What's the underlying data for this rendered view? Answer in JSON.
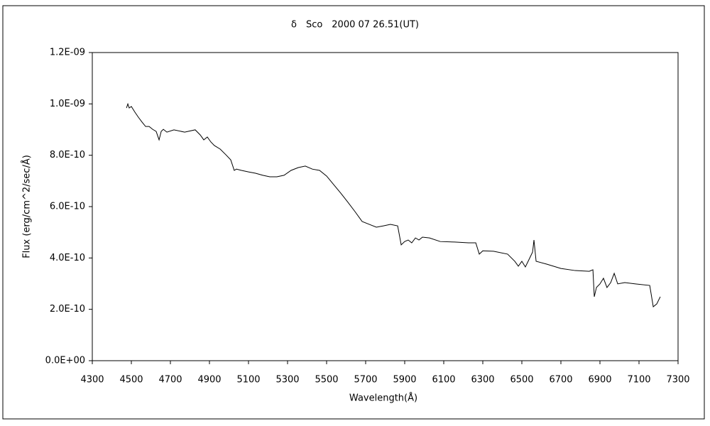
{
  "chart_data": {
    "type": "line",
    "title": "δ　Sco　2000 07 26.51(UT)",
    "x_label": "Wavelength(Å)",
    "y_label": "Flux (erg/cm^2/sec/Å)",
    "color": "#000000",
    "x": [
      4475,
      4482,
      4489,
      4500,
      4518,
      4536,
      4555,
      4573,
      4591,
      4609,
      4627,
      4642,
      4653,
      4664,
      4682,
      4718,
      4773,
      4827,
      4853,
      4871,
      4889,
      4907,
      4925,
      4955,
      4984,
      5009,
      5027,
      5038,
      5064,
      5100,
      5136,
      5173,
      5209,
      5245,
      5282,
      5318,
      5355,
      5391,
      5427,
      5464,
      5500,
      5536,
      5573,
      5609,
      5645,
      5682,
      5718,
      5755,
      5791,
      5827,
      5864,
      5882,
      5900,
      5918,
      5936,
      5955,
      5973,
      5991,
      6027,
      6082,
      6155,
      6227,
      6264,
      6282,
      6300,
      6355,
      6427,
      6464,
      6482,
      6500,
      6518,
      6536,
      6555,
      6562,
      6573,
      6627,
      6700,
      6773,
      6845,
      6864,
      6871,
      6882,
      6900,
      6918,
      6936,
      6955,
      6973,
      6991,
      7027,
      7082,
      7155,
      7173,
      7191,
      7209
    ],
    "values": [
      9.84e-10,
      1e-09,
      9.84e-10,
      9.9e-10,
      9.68e-10,
      9.48e-10,
      9.29e-10,
      9.12e-10,
      9.12e-10,
      9.01e-10,
      8.93e-10,
      8.6e-10,
      8.93e-10,
      9.01e-10,
      8.9e-10,
      8.99e-10,
      8.9e-10,
      8.99e-10,
      8.79e-10,
      8.6e-10,
      8.71e-10,
      8.52e-10,
      8.38e-10,
      8.24e-10,
      8.02e-10,
      7.82e-10,
      7.41e-10,
      7.46e-10,
      7.41e-10,
      7.35e-10,
      7.3e-10,
      7.22e-10,
      7.16e-10,
      7.16e-10,
      7.22e-10,
      7.41e-10,
      7.52e-10,
      7.58e-10,
      7.46e-10,
      7.41e-10,
      7.19e-10,
      6.86e-10,
      6.52e-10,
      6.17e-10,
      5.81e-10,
      5.42e-10,
      5.31e-10,
      5.2e-10,
      5.25e-10,
      5.31e-10,
      5.25e-10,
      4.51e-10,
      4.64e-10,
      4.7e-10,
      4.59e-10,
      4.78e-10,
      4.7e-10,
      4.81e-10,
      4.78e-10,
      4.64e-10,
      4.62e-10,
      4.59e-10,
      4.59e-10,
      4.15e-10,
      4.28e-10,
      4.26e-10,
      4.15e-10,
      3.87e-10,
      3.68e-10,
      3.87e-10,
      3.65e-10,
      3.93e-10,
      4.23e-10,
      4.7e-10,
      3.87e-10,
      3.76e-10,
      3.59e-10,
      3.51e-10,
      3.48e-10,
      3.54e-10,
      2.49e-10,
      2.85e-10,
      2.99e-10,
      3.21e-10,
      2.85e-10,
      3.04e-10,
      3.4e-10,
      2.99e-10,
      3.04e-10,
      2.99e-10,
      2.93e-10,
      2.1e-10,
      2.21e-10,
      2.49e-10
    ],
    "xlim": [
      4300,
      7300
    ],
    "xticks": [
      4300,
      4500,
      4700,
      4900,
      5100,
      5300,
      5500,
      5700,
      5900,
      6100,
      6300,
      6500,
      6700,
      6900,
      7100,
      7300
    ],
    "ylim": [
      0,
      1.2e-09
    ],
    "yticks": [
      {
        "value": 0,
        "label": "0.0E+00"
      },
      {
        "value": 2e-10,
        "label": "2.0E-10"
      },
      {
        "value": 4e-10,
        "label": "4.0E-10"
      },
      {
        "value": 6e-10,
        "label": "6.0E-10"
      },
      {
        "value": 8e-10,
        "label": "8.0E-10"
      },
      {
        "value": 1e-09,
        "label": "1.0E-09"
      },
      {
        "value": 1.2e-09,
        "label": "1.2E-09"
      }
    ]
  }
}
